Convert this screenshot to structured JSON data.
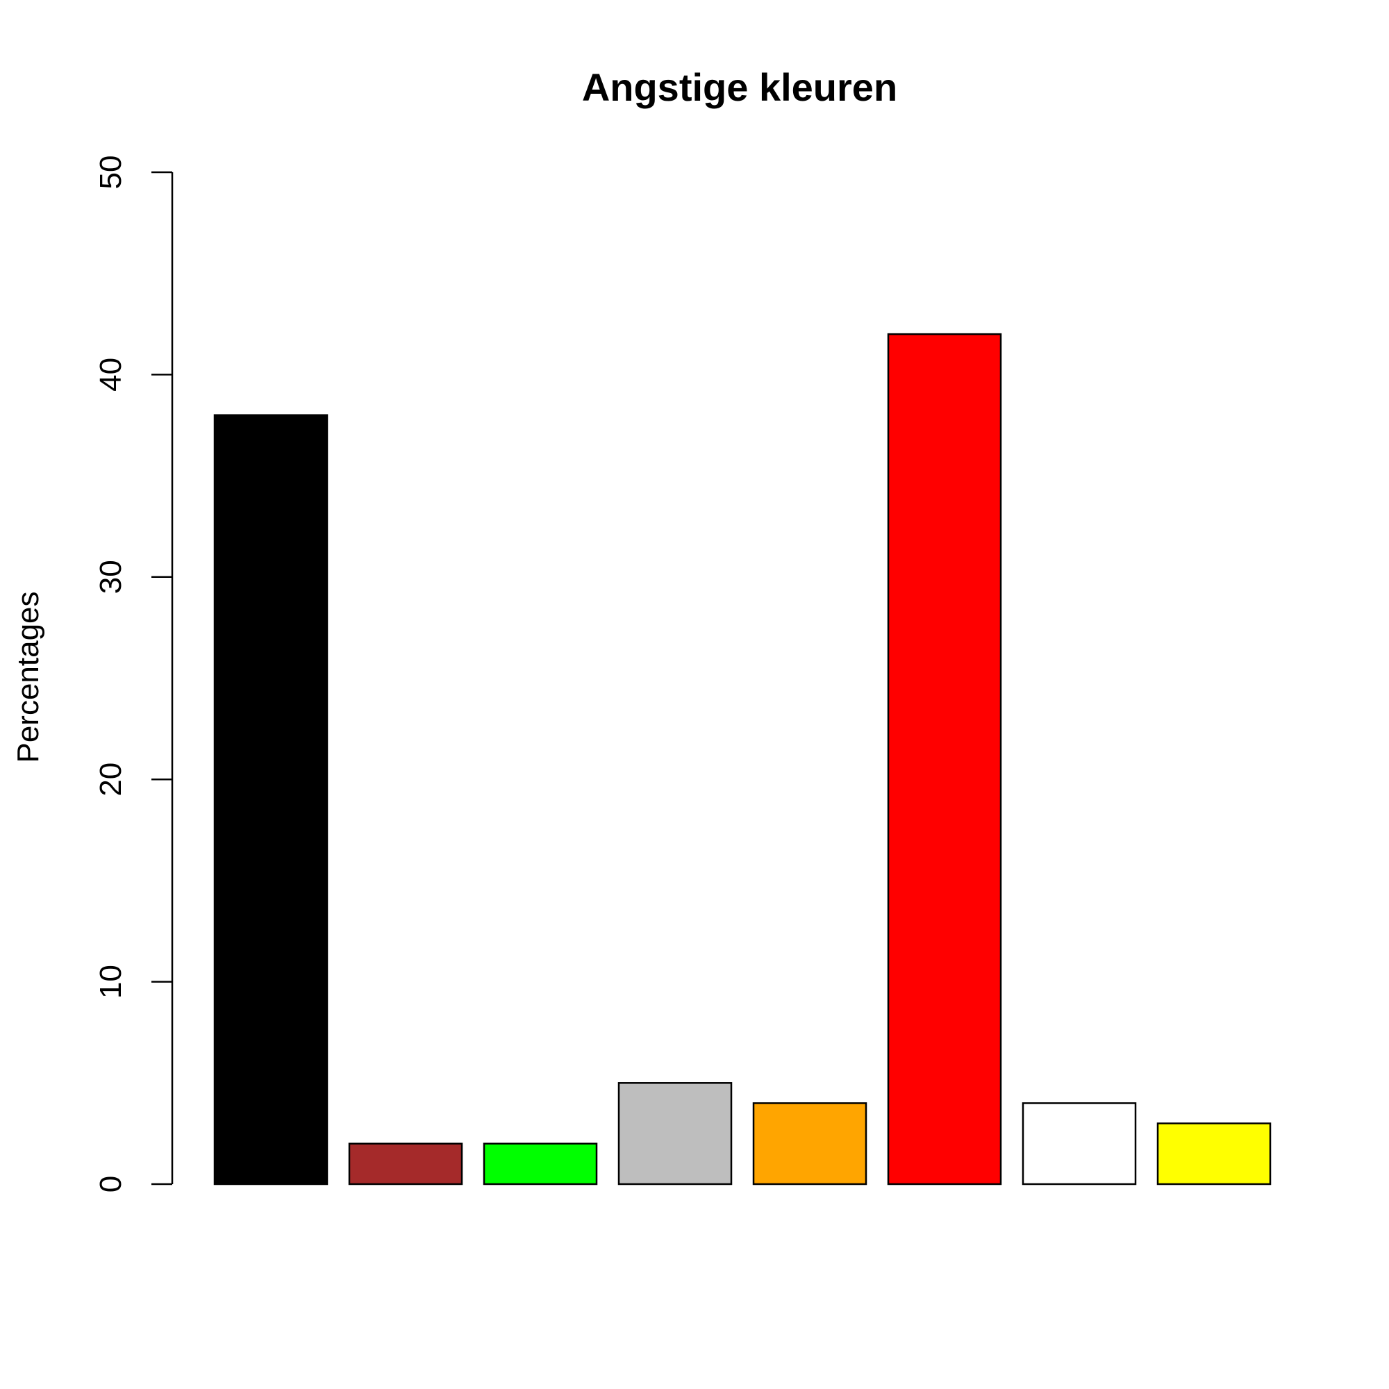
{
  "chart_data": {
    "type": "bar",
    "title": "Angstige kleuren",
    "xlabel": "",
    "ylabel": "Percentages",
    "ylim": [
      0,
      50
    ],
    "yticks": [
      0,
      10,
      20,
      30,
      40,
      50
    ],
    "grid": false,
    "categories": [
      "",
      "",
      "",
      "",
      "",
      "",
      "",
      ""
    ],
    "values": [
      38,
      2,
      2,
      5,
      4,
      42,
      4,
      3
    ],
    "bar_colors": [
      "#000000",
      "#a52a2a",
      "#00ff00",
      "#bebebe",
      "#ffa500",
      "#ff0000",
      "#ffffff",
      "#ffff00"
    ]
  }
}
